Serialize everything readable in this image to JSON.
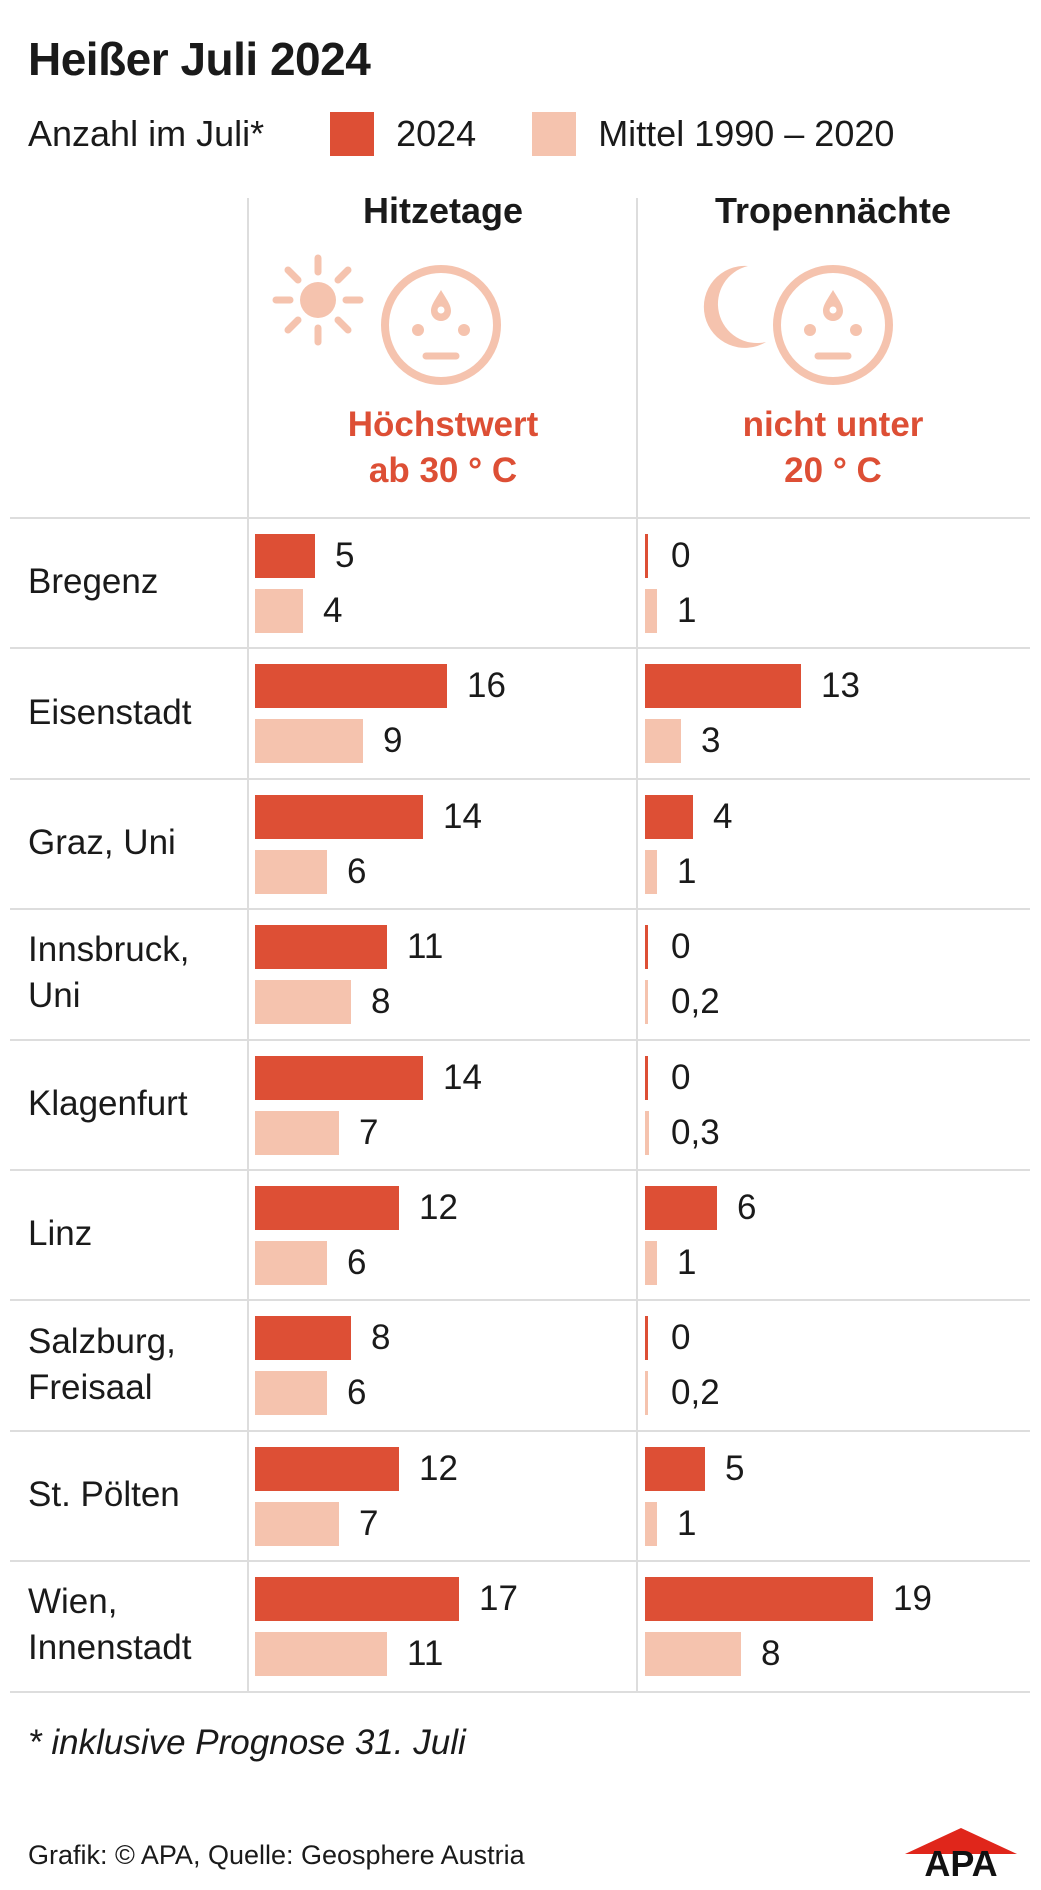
{
  "title": "Heißer Juli 2024",
  "legend": {
    "intro": "Anzahl im Juli*",
    "items": [
      {
        "label": "2024",
        "color": "#dd4f35"
      },
      {
        "label": "Mittel 1990 – 2020",
        "color": "#f5c3ae"
      }
    ]
  },
  "columns": [
    {
      "title": "Hitzetage",
      "desc": [
        "Höchstwert",
        "ab 30 ° C"
      ],
      "icons": [
        "sun-icon",
        "sweating-face-icon"
      ]
    },
    {
      "title": "Tropennächte",
      "desc": [
        "nicht unter",
        "20 ° C"
      ],
      "icons": [
        "moon-icon",
        "sweating-face-icon"
      ]
    }
  ],
  "chart_data": {
    "type": "bar",
    "orientation": "horizontal",
    "categories": [
      [
        "Bregenz"
      ],
      [
        "Eisenstadt"
      ],
      [
        "Graz, Uni"
      ],
      [
        "Innsbruck,",
        "Uni"
      ],
      [
        "Klagenfurt"
      ],
      [
        "Linz"
      ],
      [
        "Salzburg,",
        "Freisaal"
      ],
      [
        "St. Pölten"
      ],
      [
        "Wien,",
        "Innenstadt"
      ]
    ],
    "panels": [
      {
        "title": "Hitzetage",
        "series": [
          {
            "name": "2024",
            "values": [
              5,
              16,
              14,
              11,
              14,
              12,
              8,
              12,
              17
            ],
            "labels": [
              "5",
              "16",
              "14",
              "11",
              "14",
              "12",
              "8",
              "12",
              "17"
            ]
          },
          {
            "name": "Mittel 1990 – 2020",
            "values": [
              4,
              9,
              6,
              8,
              7,
              6,
              6,
              7,
              11
            ],
            "labels": [
              "4",
              "9",
              "6",
              "8",
              "7",
              "6",
              "6",
              "7",
              "11"
            ]
          }
        ]
      },
      {
        "title": "Tropennächte",
        "series": [
          {
            "name": "2024",
            "values": [
              0,
              13,
              4,
              0,
              0,
              6,
              0,
              5,
              19
            ],
            "labels": [
              "0",
              "13",
              "4",
              "0",
              "0",
              "6",
              "0",
              "5",
              "19"
            ]
          },
          {
            "name": "Mittel 1990 – 2020",
            "values": [
              1,
              3,
              1,
              0.2,
              0.3,
              1,
              0.2,
              1,
              8
            ],
            "labels": [
              "1",
              "3",
              "1",
              "0,2",
              "0,3",
              "1",
              "0,2",
              "1",
              "8"
            ]
          }
        ]
      }
    ],
    "colors": {
      "2024": "#dd4f35",
      "Mittel 1990 – 2020": "#f5c3ae"
    },
    "xlim": [
      0,
      19
    ],
    "grid": false
  },
  "footnote": "* inklusive Prognose 31. Juli",
  "source": "Grafik: © APA, Quelle: Geosphere Austria",
  "logo_text": "APA"
}
